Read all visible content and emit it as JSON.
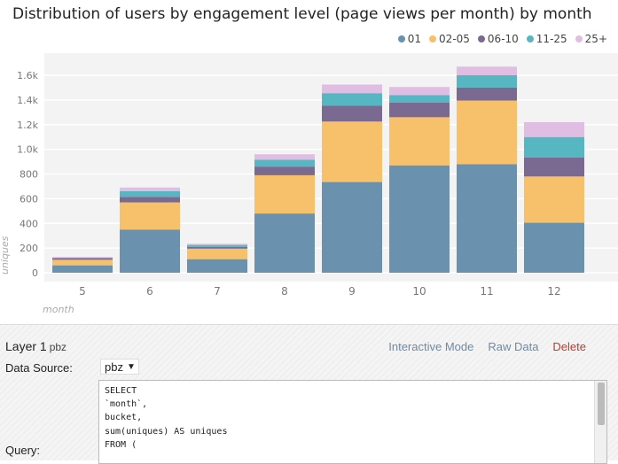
{
  "chart_panel": {
    "title": "Distribution of users by engagement level (page views per month) by month"
  },
  "chart_data": {
    "type": "bar",
    "stacked": true,
    "title": "Distribution of users by engagement level (page views per month) by month",
    "xlabel": "month",
    "ylabel": "uniques",
    "categories": [
      "5",
      "6",
      "7",
      "8",
      "9",
      "10",
      "11",
      "12"
    ],
    "ylim": [
      0,
      1700
    ],
    "yticks": [
      0,
      200,
      400,
      600,
      800,
      1000,
      1200,
      1400,
      1600
    ],
    "ytick_labels": [
      "0",
      "200",
      "400",
      "600",
      "800",
      "1.0k",
      "1.2k",
      "1.4k",
      "1.6k"
    ],
    "grid": true,
    "legend_position": "top-right",
    "series": [
      {
        "name": "01",
        "color": "#6a91ad",
        "values": [
          60,
          350,
          110,
          480,
          735,
          870,
          880,
          405
        ]
      },
      {
        "name": "02-05",
        "color": "#f7c06a",
        "values": [
          45,
          220,
          85,
          310,
          490,
          390,
          515,
          375
        ]
      },
      {
        "name": "06-10",
        "color": "#7a6a92",
        "values": [
          10,
          45,
          15,
          70,
          130,
          120,
          105,
          155
        ]
      },
      {
        "name": "11-25",
        "color": "#56b6c2",
        "values": [
          8,
          45,
          15,
          55,
          100,
          60,
          100,
          165
        ]
      },
      {
        "name": "25+",
        "color": "#e0bde3",
        "values": [
          5,
          30,
          10,
          45,
          70,
          65,
          70,
          120
        ]
      }
    ]
  },
  "layer": {
    "title": "Layer 1",
    "subtitle": "pbz",
    "actions": {
      "interactive_mode": "Interactive Mode",
      "raw_data": "Raw Data",
      "delete": "Delete"
    },
    "data_source_label": "Data Source:",
    "data_source_value": "pbz",
    "query_label": "Query:",
    "query_text": "SELECT\n`month`,\nbucket,\nsum(uniques) AS uniques\nFROM ("
  }
}
